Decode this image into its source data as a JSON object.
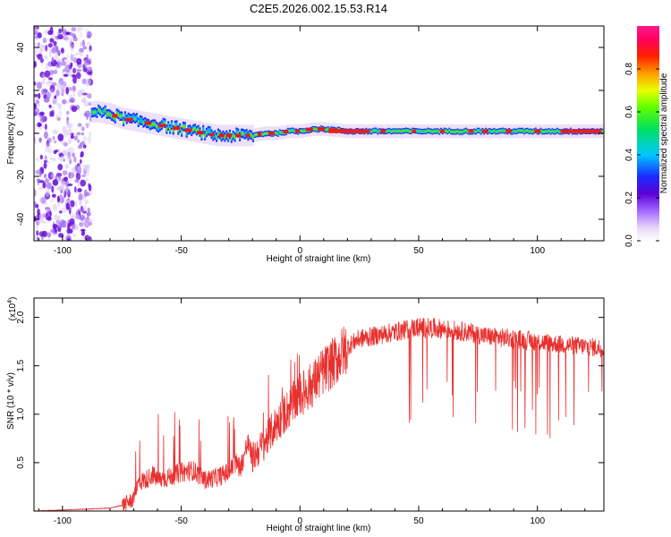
{
  "chart_data": [
    {
      "type": "heatmap",
      "title": "C2E5.2026.002.15.53.R14",
      "xlabel": "Height of straight line (km)",
      "ylabel": "Frequency (Hz)",
      "xlim": [
        -112,
        128
      ],
      "ylim": [
        -50,
        50
      ],
      "x_ticks": [
        -100,
        -50,
        0,
        50,
        100
      ],
      "y_ticks": [
        -40,
        -20,
        0,
        20,
        40
      ],
      "colorbar": {
        "label": "Normalized spectral amplitude",
        "range": [
          0,
          1
        ],
        "ticks": [
          0.0,
          0.2,
          0.4,
          0.6,
          0.8
        ],
        "tick_labels": [
          "0.0",
          "0.2",
          "0.4",
          "0.6",
          "0.8"
        ]
      },
      "ridge": {
        "x": [
          -110,
          -100,
          -90,
          -85,
          -80,
          -75,
          -70,
          -65,
          -60,
          -55,
          -50,
          -45,
          -40,
          -35,
          -30,
          -25,
          -20,
          -15,
          -10,
          -5,
          0,
          5,
          10,
          20,
          30,
          40,
          50,
          60,
          70,
          80,
          90,
          100,
          110,
          120,
          128
        ],
        "frequency": [
          5,
          8,
          10,
          10,
          9,
          7,
          6,
          5,
          4,
          3,
          2,
          1,
          0,
          -1,
          -1,
          -1,
          -1,
          0,
          0,
          1,
          1,
          2,
          2,
          1,
          1,
          1,
          1,
          1,
          1,
          1,
          1,
          1,
          1,
          1,
          1
        ]
      },
      "noise_region_x": [
        -112,
        -88
      ]
    },
    {
      "type": "line",
      "title": "",
      "xlabel": "Height of straight line (km)",
      "ylabel": "SNR (10 * v/v)",
      "y_multiplier": "(x10",
      "y_multiplier_exp": "4",
      "y_multiplier_close": ")",
      "xlim": [
        -112,
        128
      ],
      "ylim": [
        0,
        2.2
      ],
      "x_ticks": [
        -100,
        -50,
        0,
        50,
        100
      ],
      "y_ticks": [
        0.5,
        1.0,
        1.5,
        2.0
      ],
      "y_tick_labels": [
        "0.5",
        "1.0",
        "1.5",
        "2.0"
      ],
      "series": [
        {
          "color": "#e8312f",
          "x": [
            -112,
            -100,
            -90,
            -80,
            -75,
            -70,
            -68,
            -65,
            -62,
            -60,
            -55,
            -50,
            -45,
            -40,
            -35,
            -30,
            -27,
            -25,
            -22,
            -20,
            -15,
            -10,
            -5,
            0,
            5,
            10,
            15,
            20,
            25,
            30,
            40,
            50,
            60,
            70,
            80,
            90,
            100,
            110,
            120,
            128
          ],
          "values": [
            0.0,
            0.01,
            0.02,
            0.03,
            0.06,
            0.12,
            0.3,
            0.32,
            0.38,
            0.32,
            0.35,
            0.4,
            0.42,
            0.32,
            0.35,
            0.4,
            0.5,
            0.45,
            0.7,
            0.55,
            0.7,
            0.9,
            1.05,
            1.2,
            1.3,
            1.45,
            1.55,
            1.7,
            1.78,
            1.8,
            1.85,
            1.9,
            1.88,
            1.85,
            1.8,
            1.78,
            1.75,
            1.72,
            1.7,
            1.68
          ]
        }
      ]
    }
  ]
}
